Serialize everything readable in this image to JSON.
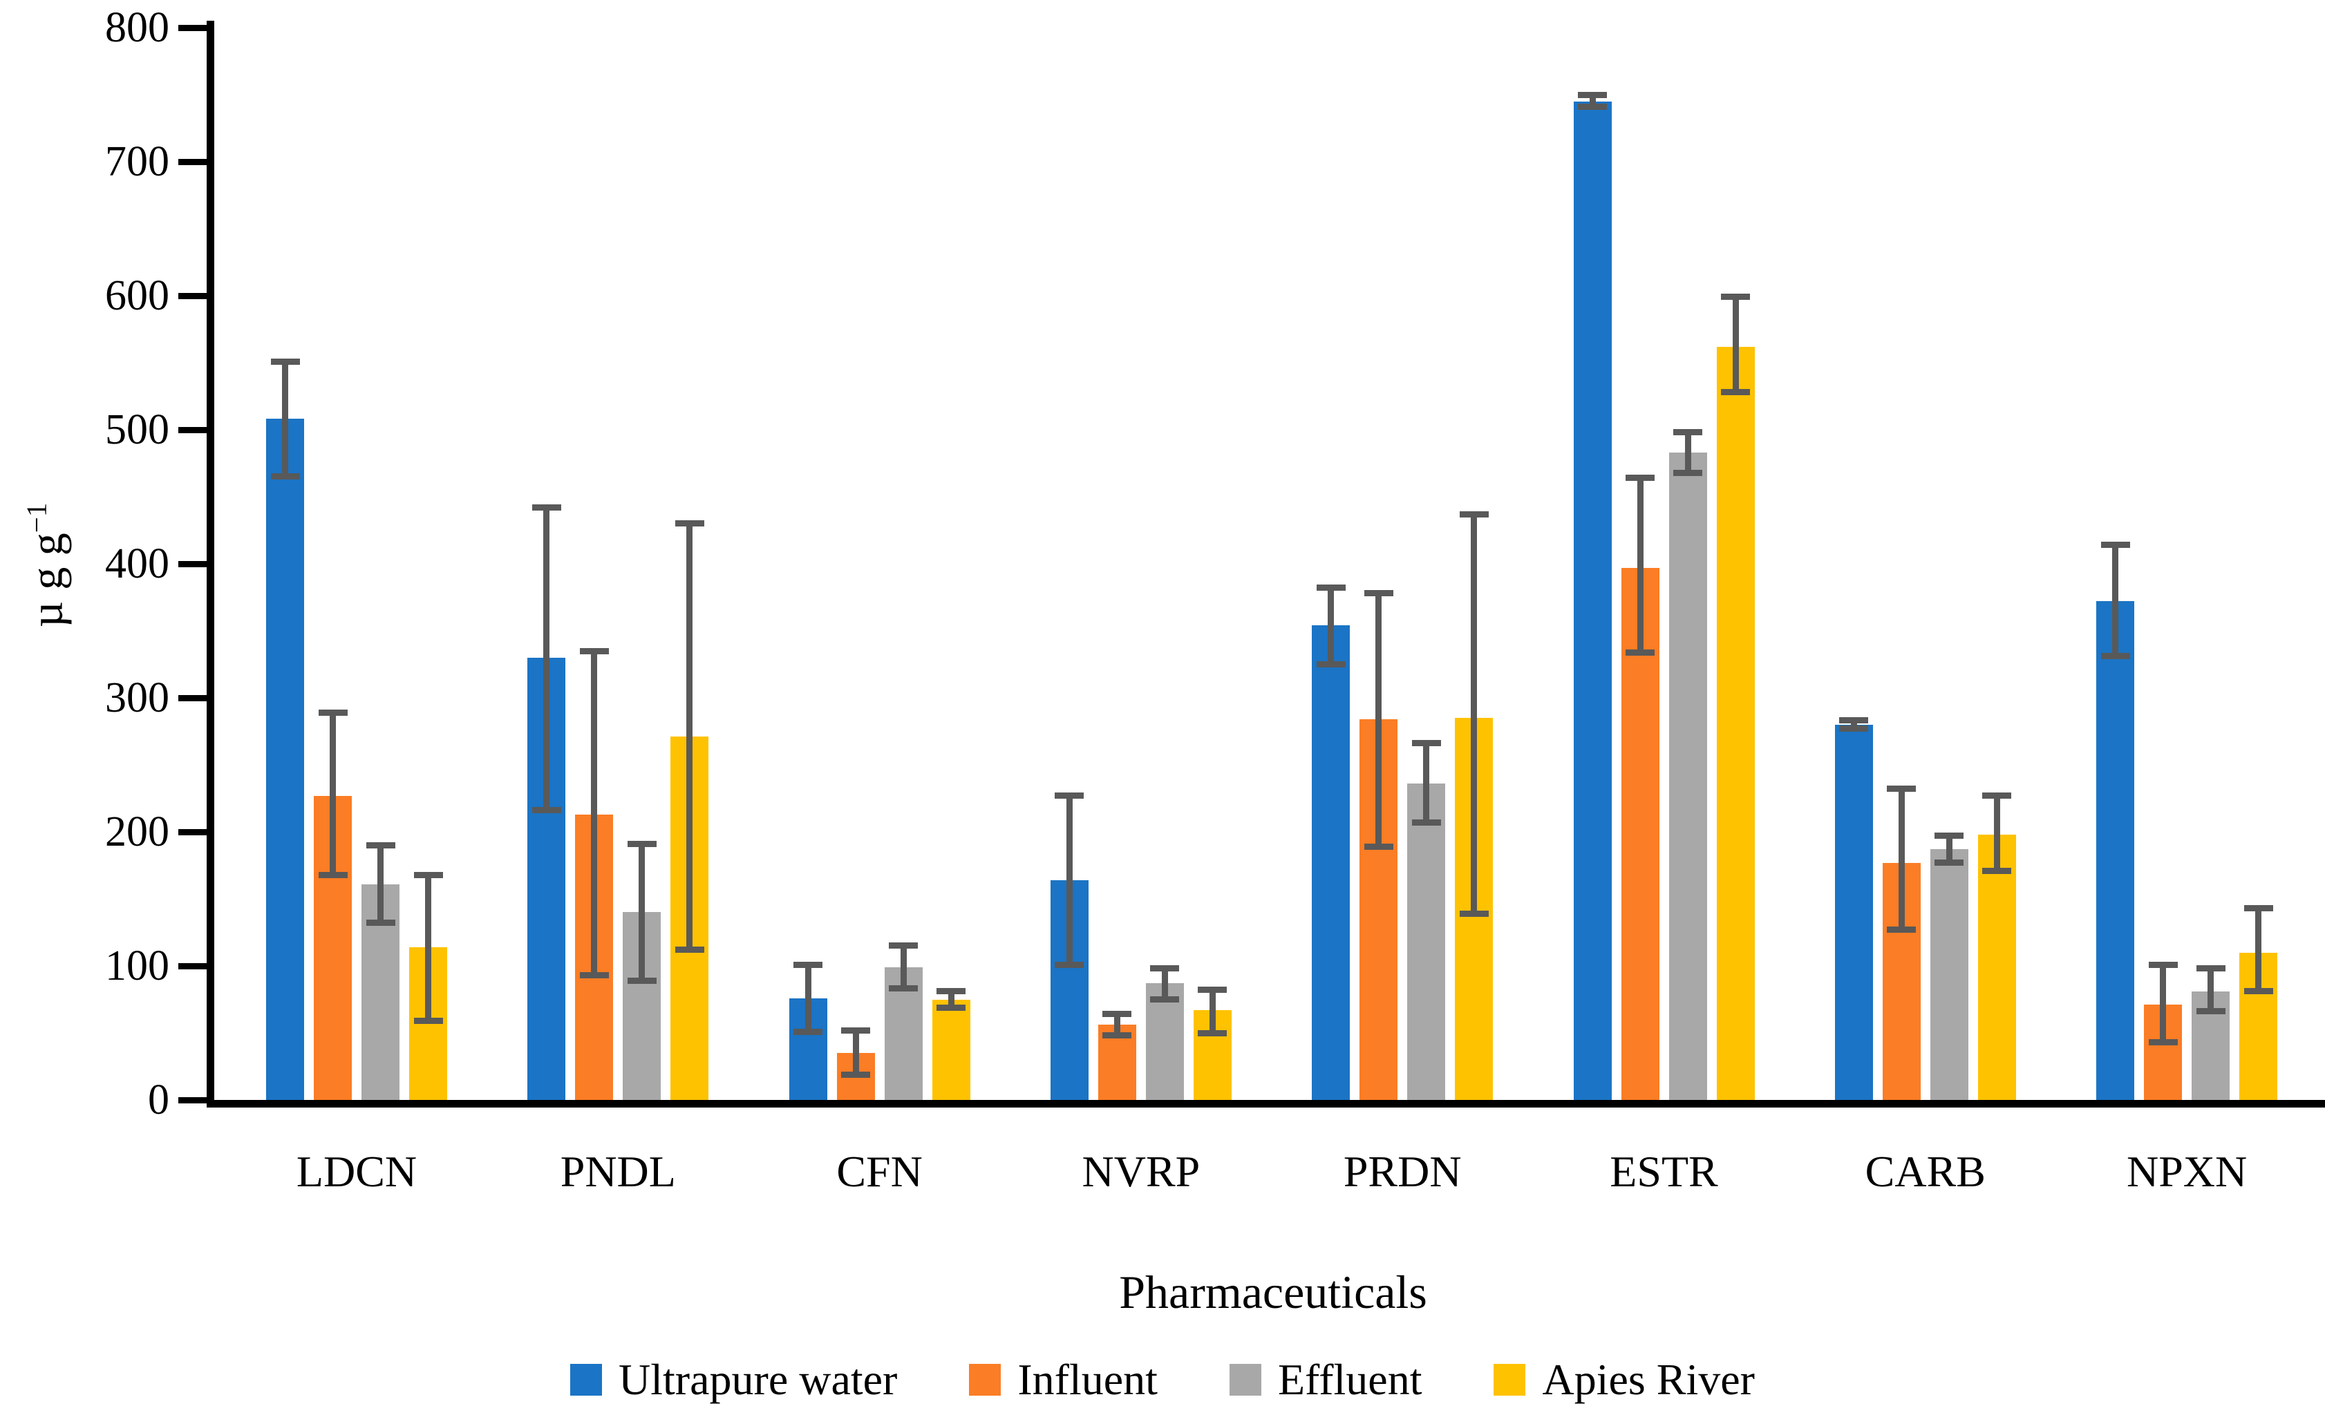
{
  "figure": {
    "y_axis_unit_base": "µ g g",
    "y_axis_unit_exp": "−1"
  },
  "chart_data": {
    "type": "bar",
    "title": "",
    "xlabel": "Pharmaceuticals",
    "ylabel": "µ g g−1",
    "ylim": [
      0,
      800
    ],
    "yticks": [
      0,
      100,
      200,
      300,
      400,
      500,
      600,
      700,
      800
    ],
    "grid": false,
    "legend_position": "bottom",
    "error_bars": true,
    "error_bar_color": "#595959",
    "categories": [
      "LDCN",
      "PNDL",
      "CFN",
      "NVRP",
      "PRDN",
      "ESTR",
      "CARB",
      "NPXN"
    ],
    "series": [
      {
        "name": "Ultrapure water",
        "color": "#1B74C5",
        "values": [
          508,
          330,
          76,
          164,
          354,
          745,
          280,
          372
        ],
        "err_low": [
          465,
          216,
          51,
          101,
          325,
          741,
          277,
          331
        ],
        "err_high": [
          551,
          442,
          101,
          227,
          382,
          750,
          283,
          414
        ]
      },
      {
        "name": "Influent",
        "color": "#FB7D25",
        "values": [
          227,
          213,
          35,
          56,
          284,
          397,
          177,
          71
        ],
        "err_low": [
          168,
          93,
          19,
          48,
          189,
          334,
          127,
          43
        ],
        "err_high": [
          289,
          335,
          52,
          64,
          378,
          464,
          232,
          101
        ]
      },
      {
        "name": "Effluent",
        "color": "#A8A8A8",
        "values": [
          161,
          140,
          99,
          87,
          236,
          483,
          187,
          81
        ],
        "err_low": [
          132,
          89,
          83,
          75,
          207,
          468,
          177,
          66
        ],
        "err_high": [
          190,
          191,
          115,
          98,
          266,
          498,
          197,
          98
        ]
      },
      {
        "name": "Apies River",
        "color": "#FFC200",
        "values": [
          114,
          271,
          75,
          67,
          285,
          562,
          198,
          110
        ],
        "err_low": [
          59,
          112,
          69,
          50,
          139,
          528,
          171,
          81
        ],
        "err_high": [
          168,
          430,
          81,
          82,
          437,
          599,
          227,
          143
        ]
      }
    ]
  }
}
